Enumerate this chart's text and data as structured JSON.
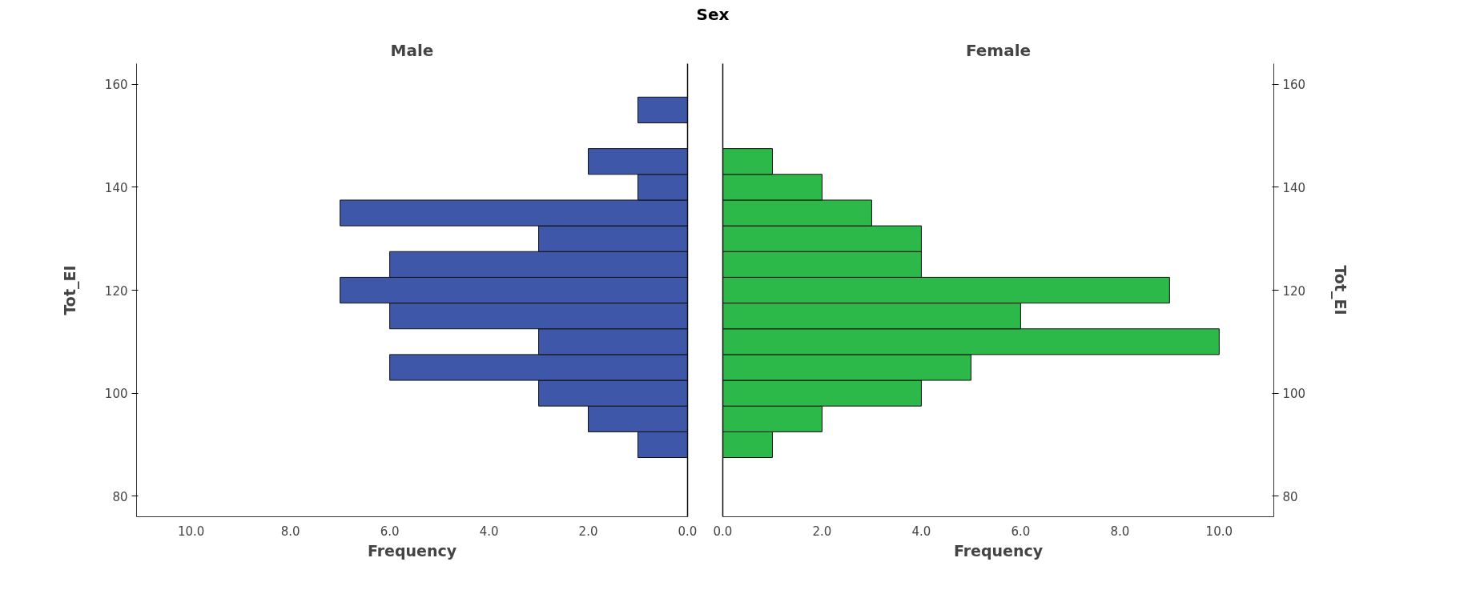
{
  "chart_data": [
    {
      "type": "histogram",
      "orientation": "horizontal",
      "title": "Male",
      "annotations": [
        "Sex"
      ],
      "xlabel": "Frequency",
      "ylabel": "Tot_EI",
      "bins": [
        87.5,
        92.5,
        97.5,
        102.5,
        107.5,
        112.5,
        117.5,
        122.5,
        127.5,
        132.5,
        137.5,
        142.5,
        147.5,
        152.5,
        157.5
      ],
      "values": [
        1,
        2,
        3,
        6,
        3,
        6,
        7,
        6,
        3,
        7,
        1,
        2,
        0,
        1
      ],
      "color": "#3f57a8",
      "xlim": [
        11.1,
        0
      ],
      "xticks": [
        {
          "value": 10,
          "label": "10.0"
        },
        {
          "value": 8,
          "label": "8.0"
        },
        {
          "value": 6,
          "label": "6.0"
        },
        {
          "value": 4,
          "label": "4.0"
        },
        {
          "value": 2,
          "label": "2.0"
        },
        {
          "value": 0,
          "label": "0.0"
        }
      ],
      "ylim": [
        76,
        164
      ],
      "yticks": [
        80,
        100,
        120,
        140,
        160
      ],
      "grid": false,
      "legend": false
    },
    {
      "type": "histogram",
      "orientation": "horizontal",
      "title": "Female",
      "xlabel": "Frequency",
      "ylabel": "Tot_EI",
      "bins": [
        87.5,
        92.5,
        97.5,
        102.5,
        107.5,
        112.5,
        117.5,
        122.5,
        127.5,
        132.5,
        137.5,
        142.5,
        147.5,
        152.5,
        157.5
      ],
      "values": [
        1,
        2,
        4,
        5,
        10,
        6,
        9,
        4,
        4,
        3,
        2,
        1,
        0,
        0
      ],
      "color": "#2db84a",
      "xlim": [
        0,
        11.1
      ],
      "xticks": [
        {
          "value": 0,
          "label": "0.0"
        },
        {
          "value": 2,
          "label": "2.0"
        },
        {
          "value": 4,
          "label": "4.0"
        },
        {
          "value": 6,
          "label": "6.0"
        },
        {
          "value": 8,
          "label": "8.0"
        },
        {
          "value": 10,
          "label": "10.0"
        }
      ],
      "ylim": [
        76,
        164
      ],
      "yticks": [
        80,
        100,
        120,
        140,
        160
      ],
      "grid": false,
      "legend": false
    }
  ]
}
